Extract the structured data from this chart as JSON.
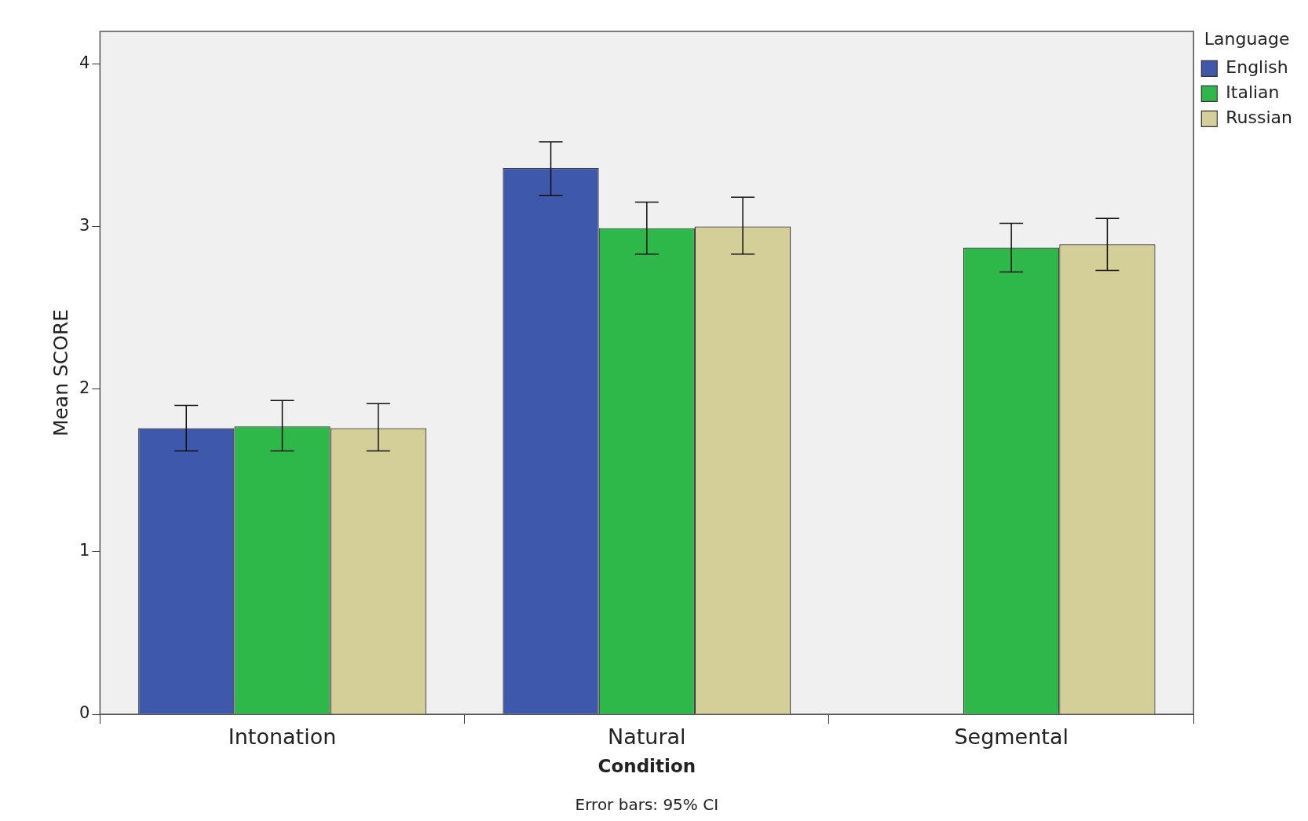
{
  "chart_data": {
    "type": "bar",
    "xlabel": "Condition",
    "ylabel": "Mean SCORE",
    "legend_title": "Language",
    "legend": "top right",
    "grid": false,
    "categories": [
      "Intonation",
      "Natural",
      "Segmental"
    ],
    "ylim": [
      0,
      4.2
    ],
    "yticks": [
      0,
      1,
      2,
      3,
      4
    ],
    "series": [
      {
        "name": "English",
        "color": "#3e58ac",
        "values": [
          1.76,
          3.36,
          null
        ],
        "errors": [
          [
            1.62,
            1.9
          ],
          [
            3.19,
            3.52
          ],
          null
        ]
      },
      {
        "name": "Italian",
        "color": "#2fb84a",
        "values": [
          1.77,
          2.99,
          2.87
        ],
        "errors": [
          [
            1.62,
            1.93
          ],
          [
            2.83,
            3.15
          ],
          [
            2.72,
            3.02
          ]
        ]
      },
      {
        "name": "Russian",
        "color": "#d4ce98",
        "values": [
          1.76,
          3.0,
          2.89
        ],
        "errors": [
          [
            1.62,
            1.91
          ],
          [
            2.83,
            3.18
          ],
          [
            2.73,
            3.05
          ]
        ]
      }
    ],
    "annotations": [
      "Error bars: 95% CI"
    ]
  }
}
